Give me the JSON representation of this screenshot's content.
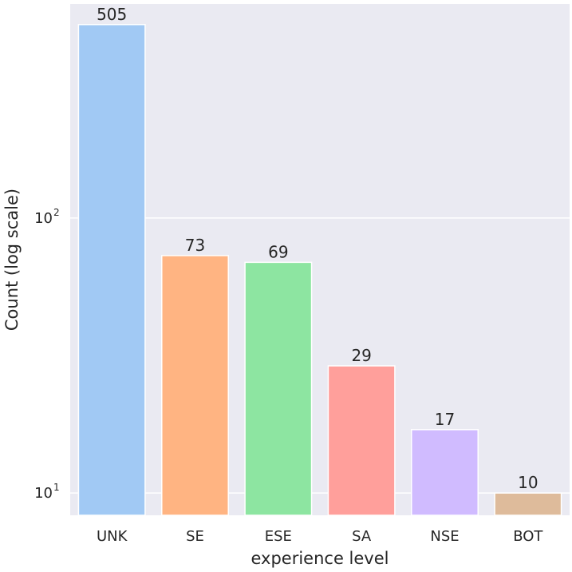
{
  "chart_data": {
    "type": "bar",
    "categories": [
      "UNK",
      "SE",
      "ESE",
      "SA",
      "NSE",
      "BOT"
    ],
    "values": [
      505,
      73,
      69,
      29,
      17,
      10
    ],
    "data_labels": [
      "505",
      "73",
      "69",
      "29",
      "17",
      "10"
    ],
    "colors": [
      "#a1c9f4",
      "#ffb482",
      "#8de5a1",
      "#ff9f9b",
      "#d0bbff",
      "#debb9b"
    ],
    "xlabel": "experience level",
    "ylabel": "Count (log scale)",
    "yscale": "log",
    "ylim": [
      8.3,
      600
    ],
    "y_ticks": [
      {
        "value": 10,
        "base": "10",
        "exp": "1"
      },
      {
        "value": 100,
        "base": "10",
        "exp": "2"
      }
    ],
    "grid": true,
    "background": "#eaeaf2",
    "grid_color": "#ffffff"
  }
}
